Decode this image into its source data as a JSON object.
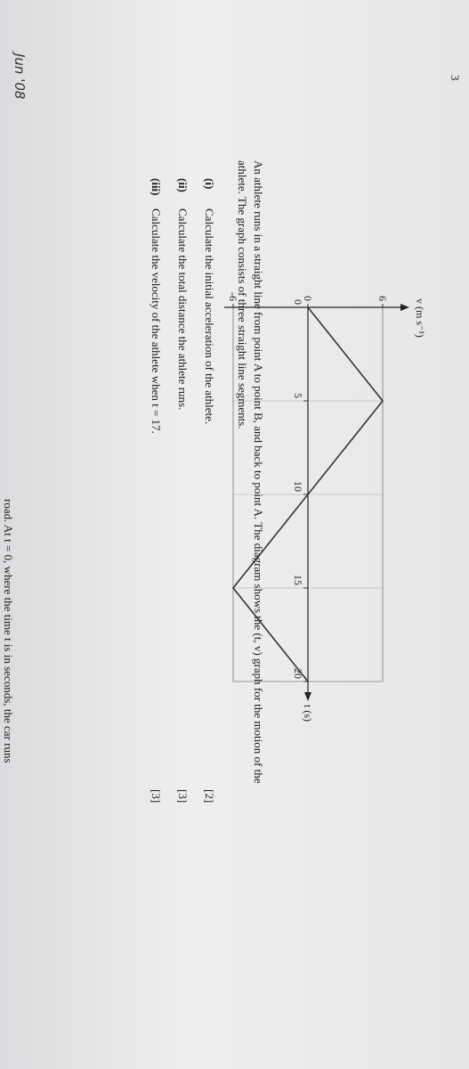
{
  "header": {
    "page_number": "3",
    "handwritten_note": "Jun '08"
  },
  "graph": {
    "type": "line",
    "y_label": "v (m s⁻¹)",
    "x_label": "t (s)",
    "x": [
      0,
      5,
      15,
      20
    ],
    "values": [
      0,
      6,
      -6,
      0
    ],
    "xlim": [
      0,
      20
    ],
    "ylim": [
      -6,
      6
    ],
    "xticks": [
      0,
      5,
      10,
      15,
      20
    ],
    "yticks": [
      -6,
      0,
      6
    ],
    "color": "#333333"
  },
  "question": {
    "intro": "An athlete runs in a straight line from point A to point B, and back to point A. The diagram shows the (t, v) graph for the motion of the athlete. The graph consists of three straight line segments.",
    "parts": [
      {
        "label": "(i)",
        "text": "Calculate the initial acceleration of the athlete.",
        "marks": "[2]"
      },
      {
        "label": "(ii)",
        "text": "Calculate the total distance the athlete runs.",
        "marks": "[3]"
      },
      {
        "label": "(iii)",
        "text": "Calculate the velocity of the athlete when t = 17.",
        "marks": "[3]"
      }
    ]
  },
  "footer": {
    "cut_text": "road. At t = 0, where the time t is in seconds, the car runs"
  }
}
